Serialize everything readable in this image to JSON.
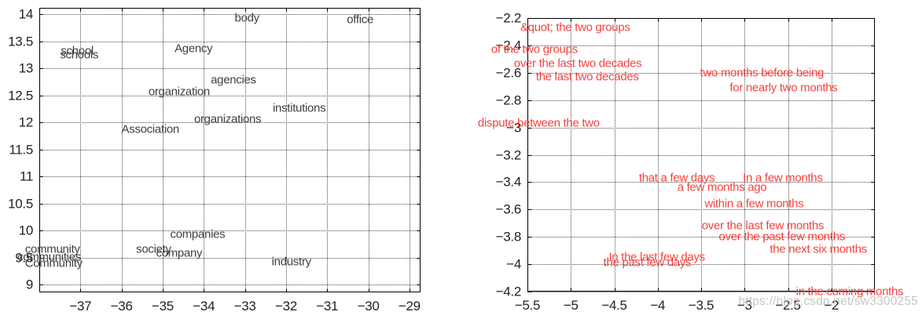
{
  "watermark": "https://blog.csdn.net/sw3300255",
  "colors": {
    "left_labels": "#3f3f3f",
    "right_labels": "#f4423c",
    "axis": "#000000",
    "tick_text": "#222222",
    "watermark": "#c3c3c3"
  },
  "chart_data": [
    {
      "type": "scatter",
      "title": "",
      "xlabel": "",
      "ylabel": "",
      "legend": "none",
      "grid": true,
      "xlim": [
        -38,
        -28.73
      ],
      "ylim": [
        8.86,
        14.12
      ],
      "xticks": [
        -37,
        -36,
        -35,
        -34,
        -33,
        -32,
        -31,
        -30,
        -29
      ],
      "yticks": [
        9,
        9.5,
        10,
        10.5,
        11,
        11.5,
        12,
        12.5,
        13,
        13.5,
        14
      ],
      "label_color": "#3f3f3f",
      "points": [
        {
          "text": "school",
          "x": -37.08,
          "y": 13.33
        },
        {
          "text": "schools",
          "x": -37.03,
          "y": 13.25
        },
        {
          "text": "Agency",
          "x": -34.25,
          "y": 13.36
        },
        {
          "text": "body",
          "x": -32.95,
          "y": 13.93
        },
        {
          "text": "office",
          "x": -30.2,
          "y": 13.9
        },
        {
          "text": "agencies",
          "x": -33.28,
          "y": 12.78
        },
        {
          "text": "organization",
          "x": -34.6,
          "y": 12.57
        },
        {
          "text": "institutions",
          "x": -31.68,
          "y": 12.26
        },
        {
          "text": "organizations",
          "x": -33.42,
          "y": 12.06
        },
        {
          "text": "Association",
          "x": -35.3,
          "y": 11.88
        },
        {
          "text": "companies",
          "x": -34.15,
          "y": 9.93
        },
        {
          "text": "community",
          "x": -37.68,
          "y": 9.66
        },
        {
          "text": "society",
          "x": -35.22,
          "y": 9.66
        },
        {
          "text": "company",
          "x": -34.6,
          "y": 9.58
        },
        {
          "text": "communities",
          "x": -37.76,
          "y": 9.51
        },
        {
          "text": "Community",
          "x": -37.65,
          "y": 9.39
        },
        {
          "text": "industry",
          "x": -31.87,
          "y": 9.43
        }
      ]
    },
    {
      "type": "scatter",
      "title": "",
      "xlabel": "",
      "ylabel": "",
      "legend": "none",
      "grid": true,
      "xlim": [
        -5.5,
        -1.5
      ],
      "ylim": [
        -4.2,
        -2.2
      ],
      "xticks": [
        -5.5,
        -5,
        -4.5,
        -4,
        -3.5,
        -3,
        -2.5,
        -2
      ],
      "yticks": [
        -4.2,
        -4,
        -3.8,
        -3.6,
        -3.4,
        -3.2,
        -3,
        -2.8,
        -2.6,
        -2.4,
        -2.2
      ],
      "label_color": "#f4423c",
      "points": [
        {
          "text": "&quot; the two groups",
          "x": -4.95,
          "y": -2.27
        },
        {
          "text": "of the two groups",
          "x": -5.42,
          "y": -2.43
        },
        {
          "text": "over the last two decades",
          "x": -4.92,
          "y": -2.53
        },
        {
          "text": "the last two decades",
          "x": -4.81,
          "y": -2.63
        },
        {
          "text": "two months before being",
          "x": -2.8,
          "y": -2.6
        },
        {
          "text": "for nearly two months",
          "x": -2.55,
          "y": -2.71
        },
        {
          "text": "dispute between the two",
          "x": -5.37,
          "y": -2.97
        },
        {
          "text": "that a few days",
          "x": -3.78,
          "y": -3.37
        },
        {
          "text": "In a few months",
          "x": -2.56,
          "y": -3.37
        },
        {
          "text": "a few months ago",
          "x": -3.26,
          "y": -3.44
        },
        {
          "text": "within a few months",
          "x": -2.89,
          "y": -3.56
        },
        {
          "text": "over the last few months",
          "x": -2.79,
          "y": -3.72
        },
        {
          "text": "over the past few months",
          "x": -2.57,
          "y": -3.8
        },
        {
          "text": "the next six months",
          "x": -2.15,
          "y": -3.89
        },
        {
          "text": "In the last few days",
          "x": -4.01,
          "y": -3.95
        },
        {
          "text": "the past few days",
          "x": -4.12,
          "y": -3.99
        },
        {
          "text": "in the coming months",
          "x": -1.79,
          "y": -4.2
        }
      ]
    }
  ]
}
